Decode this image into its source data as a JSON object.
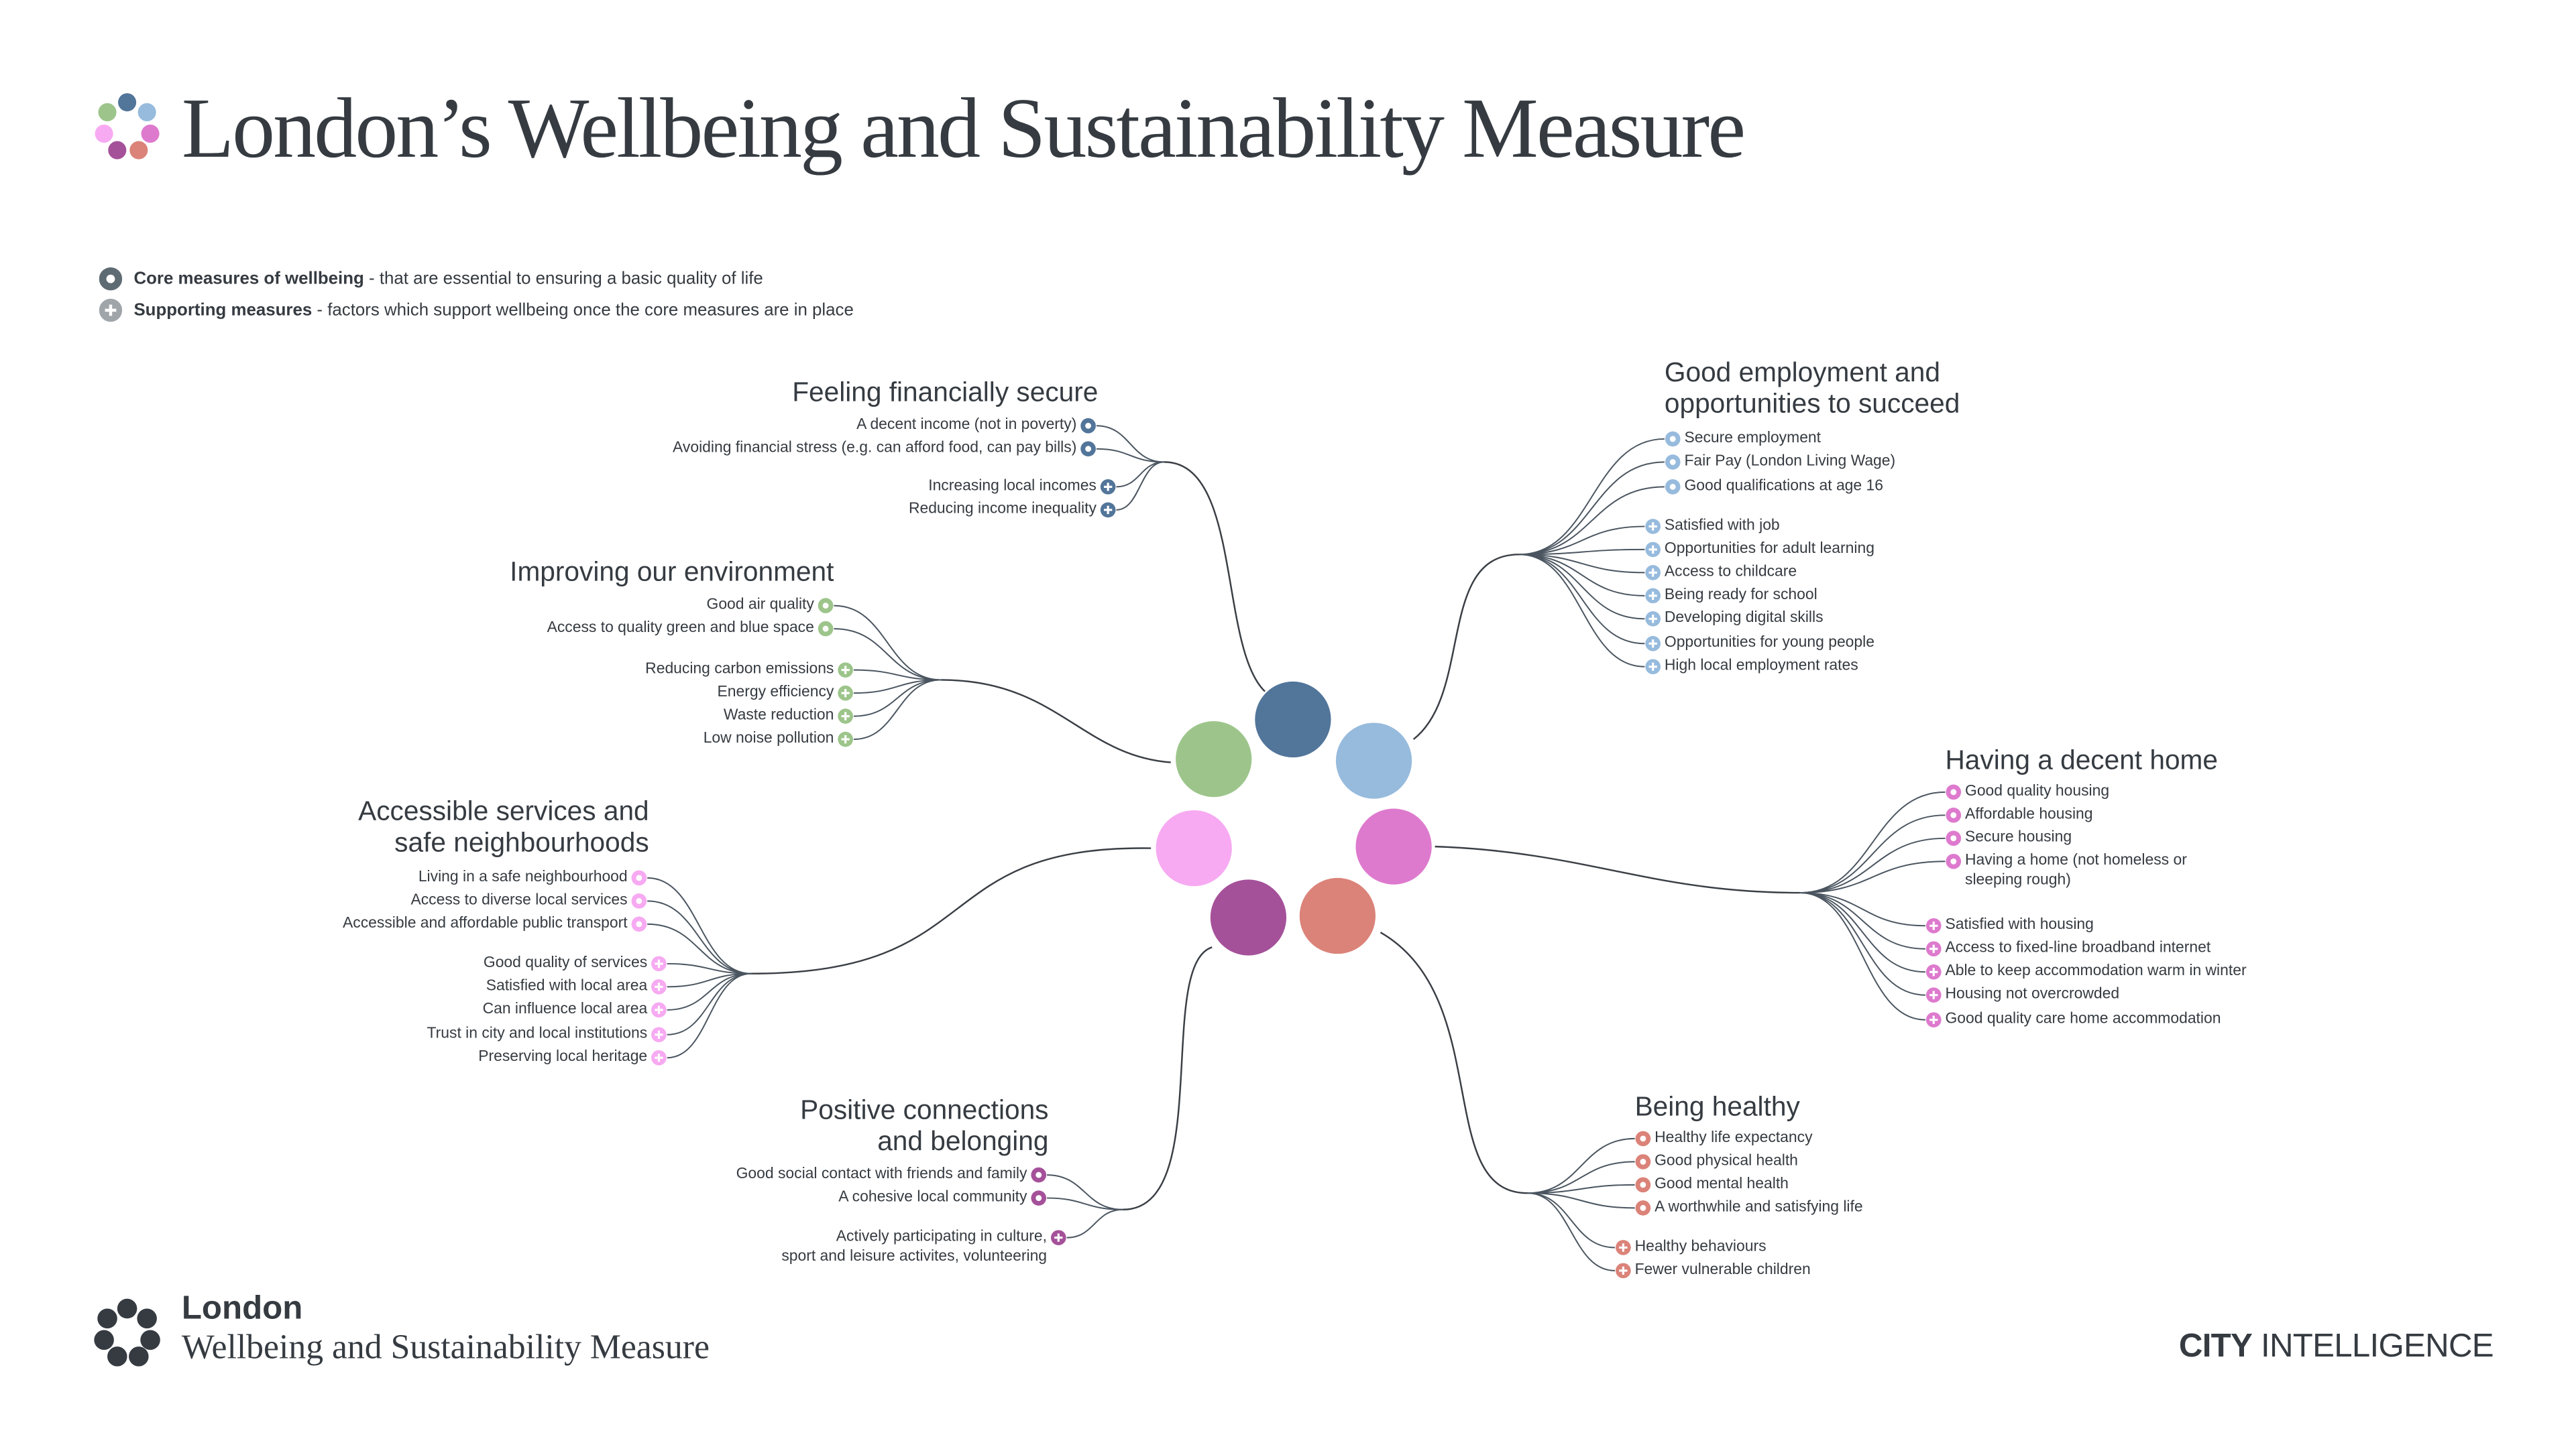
{
  "header": {
    "title": "London’s Wellbeing and Sustainability Measure",
    "logo_colors": [
      "#52759A",
      "#9DC58B",
      "#97BBDD",
      "#F7AAF2",
      "#DE7ACE",
      "#A5519A",
      "#DB8379"
    ]
  },
  "legend": {
    "core": {
      "label": "Core measures of wellbeing",
      "desc": " - that are essential to ensuring a basic quality of life",
      "icon": "core-circle-icon",
      "color": "#5F6B73"
    },
    "support": {
      "label": "Supporting measures",
      "desc": " - factors which support wellbeing once the core measures are in place",
      "icon": "plus-circle-icon",
      "color": "#A0A5AA"
    }
  },
  "groups": [
    {
      "title": "Feeling financially secure",
      "color": "#52759A",
      "core": [
        "A decent income (not in poverty)",
        "Avoiding financial stress (e.g. can afford food, can pay bills)"
      ],
      "support": [
        "Increasing local incomes",
        "Reducing income inequality"
      ]
    },
    {
      "title": "Improving our environment",
      "color": "#9DC58B",
      "core": [
        "Good air quality",
        "Access to quality green and blue space"
      ],
      "support": [
        "Reducing carbon emissions",
        "Energy efficiency",
        "Waste reduction",
        "Low noise pollution"
      ]
    },
    {
      "title": "Accessible services and\nsafe neighbourhoods",
      "color": "#F7AAF2",
      "core": [
        "Living in a safe neighbourhood",
        "Access to diverse local services",
        "Accessible and affordable public transport"
      ],
      "support": [
        "Good quality of services",
        "Satisfied with local area",
        "Can influence local area",
        "Trust in city and local institutions",
        "Preserving local heritage"
      ]
    },
    {
      "title": "Positive connections\nand belonging",
      "color": "#A5519A",
      "core": [
        "Good social contact with friends and family",
        "A cohesive local community"
      ],
      "support": [
        "Actively participating in culture,\nsport and leisure activites, volunteering"
      ]
    },
    {
      "title": "Good employment and\nopportunities to succeed",
      "color": "#97BBDD",
      "core": [
        "Secure employment",
        "Fair Pay (London Living Wage)",
        "Good qualifications at age 16"
      ],
      "support": [
        "Satisfied with job",
        "Opportunities for adult learning",
        "Access to childcare",
        "Being ready for school",
        "Developing digital skills",
        "Opportunities for young people",
        "High local employment rates"
      ]
    },
    {
      "title": "Having a decent home",
      "color": "#DE7ACE",
      "core": [
        "Good quality housing",
        "Affordable housing",
        "Secure housing",
        "Having a home (not homeless or\nsleeping rough)"
      ],
      "support": [
        "Satisfied with housing",
        "Access to fixed-line broadband internet",
        "Able to keep accommodation warm in winter",
        "Housing not overcrowded",
        "Good quality care home accommodation"
      ]
    },
    {
      "title": "Being healthy",
      "color": "#DB8379",
      "core": [
        "Healthy life expectancy",
        "Good physical health",
        "Good mental health",
        "A worthwhile and satisfying life"
      ],
      "support": [
        "Healthy behaviours",
        "Fewer vulnerable children"
      ]
    }
  ],
  "footer": {
    "logo_text": "London",
    "logo_subtitle": "Wellbeing and Sustainability Measure",
    "brand_bold": "CITY",
    "brand_rest": " INTELLIGENCE"
  }
}
